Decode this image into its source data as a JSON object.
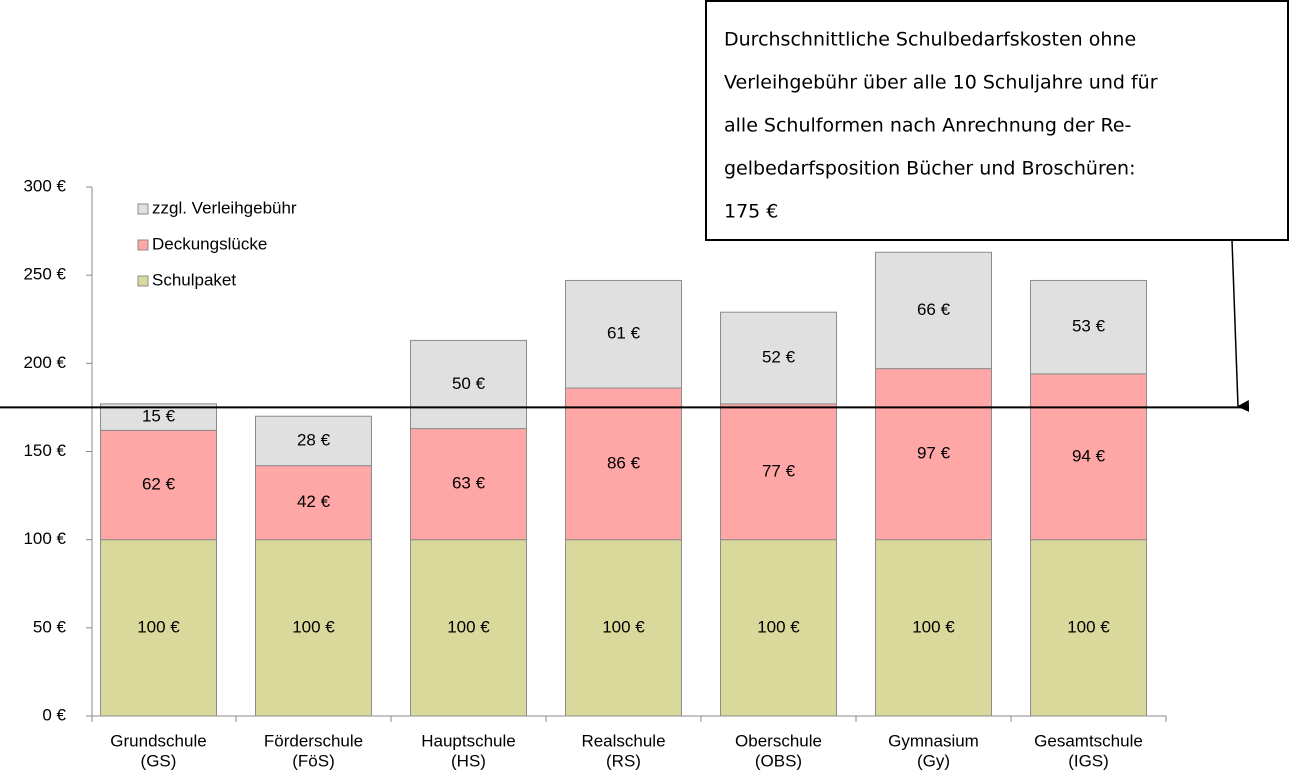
{
  "chart_data": {
    "type": "stacked_bar",
    "categories": [
      [
        "Grundschule",
        "(GS)"
      ],
      [
        "Förderschule",
        "(FöS)"
      ],
      [
        "Hauptschule",
        "(HS)"
      ],
      [
        "Realschule",
        "(RS)"
      ],
      [
        "Oberschule",
        "(OBS)"
      ],
      [
        "Gymnasium",
        "(Gy)"
      ],
      [
        "Gesamtschule",
        "(IGS)"
      ]
    ],
    "series": [
      {
        "name": "Schulpaket",
        "color": "#d9d99b",
        "values": [
          100,
          100,
          100,
          100,
          100,
          100,
          100
        ],
        "value_labels": [
          "100 €",
          "100 €",
          "100 €",
          "100 €",
          "100 €",
          "100 €",
          "100 €"
        ]
      },
      {
        "name": "Deckungslücke",
        "color": "#ffa6a6",
        "values": [
          62,
          42,
          63,
          86,
          77,
          97,
          94
        ],
        "value_labels": [
          "62 €",
          "42 €",
          "63 €",
          "86 €",
          "77 €",
          "97 €",
          "94 €"
        ]
      },
      {
        "name": "zzgl. Verleihgebühr",
        "color": "#e0e0e0",
        "values": [
          15,
          28,
          50,
          61,
          52,
          66,
          53
        ],
        "value_labels": [
          "15 €",
          "28 €",
          "50 €",
          "61 €",
          "52 €",
          "66 €",
          "53 €"
        ]
      }
    ],
    "ylim": [
      0,
      300
    ],
    "yticks": [
      {
        "value": 0,
        "label": "0 €"
      },
      {
        "value": 50,
        "label": "50 €"
      },
      {
        "value": 100,
        "label": "100 €"
      },
      {
        "value": 150,
        "label": "150 €"
      },
      {
        "value": 200,
        "label": "200 €"
      },
      {
        "value": 250,
        "label": "250 €"
      },
      {
        "value": 300,
        "label": "300 €"
      }
    ],
    "legend": "upper left",
    "annotation": [
      "Durchschnittliche Schulbedarfskosten ohne",
      "Verleihgebühr über alle 10 Schuljahre und für",
      "alle Schulformen nach Anrechnung der Re-",
      "gelbedarfsposition Bücher und Broschüren:"
    ],
    "reference_line": {
      "value": 175,
      "label": "175 €"
    }
  }
}
